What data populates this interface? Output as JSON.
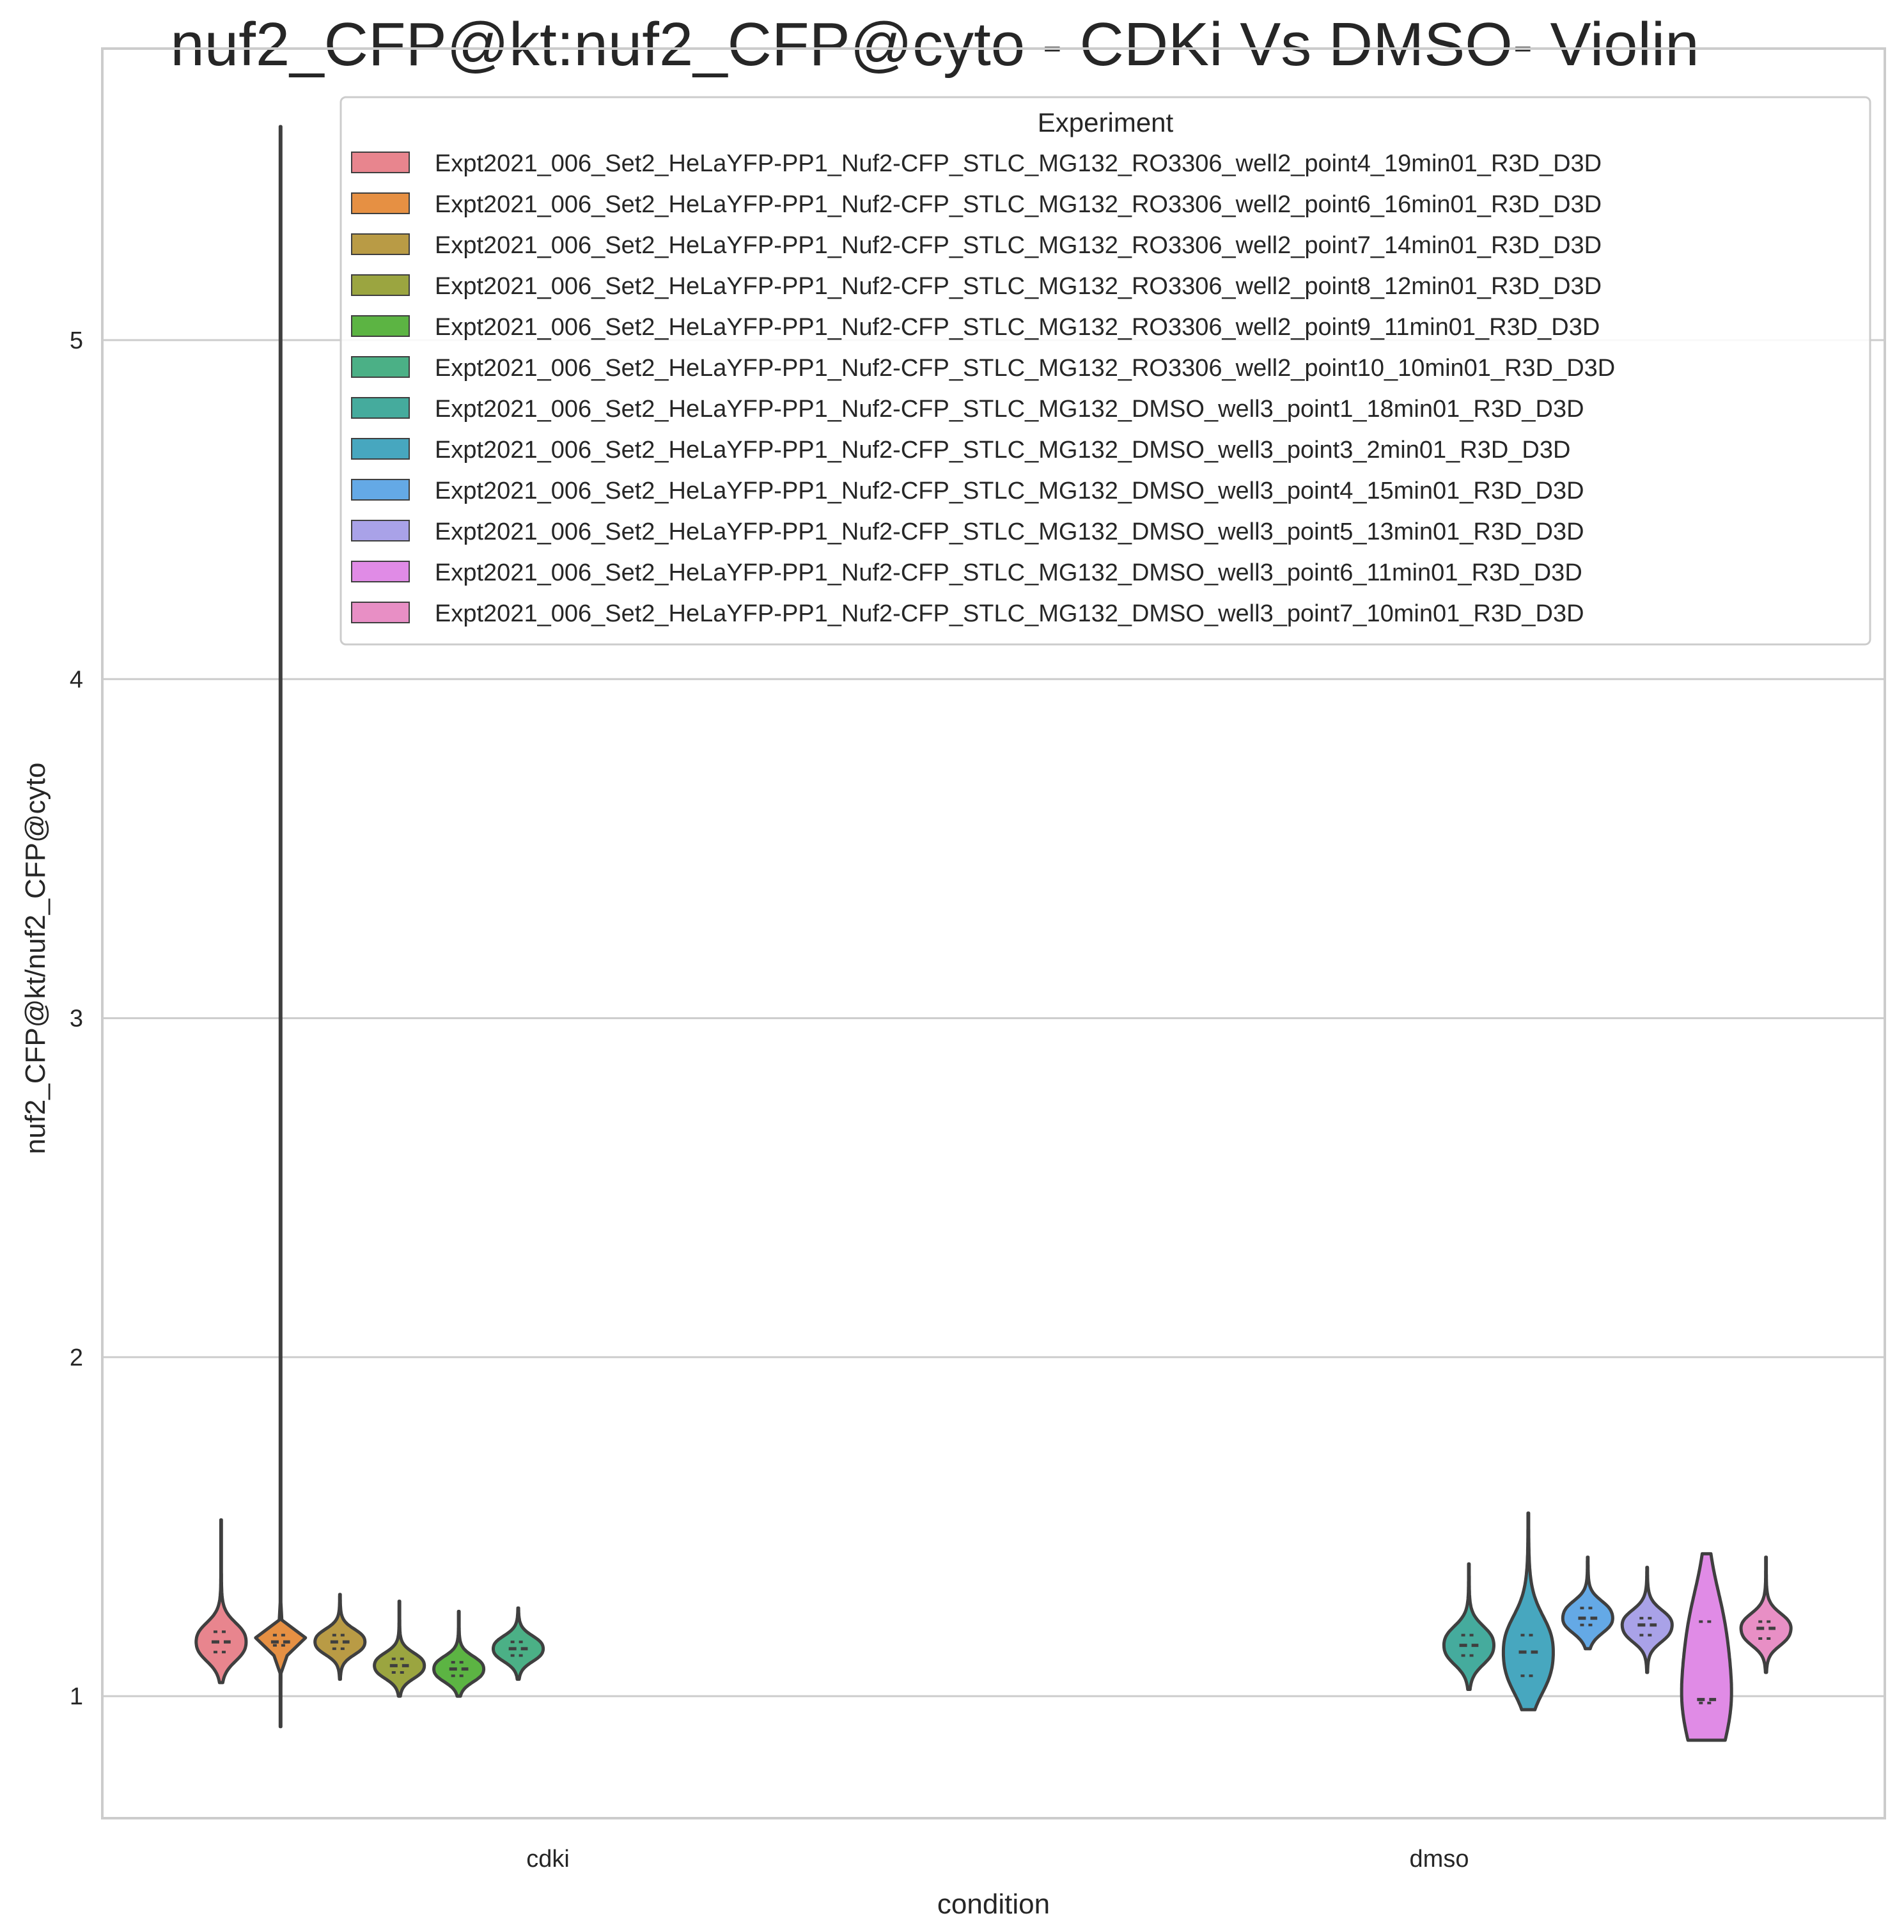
{
  "chart_data": {
    "type": "violin",
    "title": "nuf2_CFP@kt:nuf2_CFP@cyto - CDKi Vs DMSO- Violin",
    "xlabel": "condition",
    "ylabel": "nuf2_CFP@kt/nuf2_CFP@cyto",
    "ylim": [
      0.64,
      5.86
    ],
    "yticks": [
      "1",
      "2",
      "3",
      "4",
      "5"
    ],
    "grid": true,
    "legend": {
      "title": "Experiment",
      "placement": "top-right"
    },
    "categories": [
      "cdki",
      "dmso"
    ],
    "series": [
      {
        "name": "Expt2021_006_Set2_HeLaYFP-PP1_Nuf2-CFP_STLC_MG132_RO3306_well2_point4_19min01_R3D_D3D",
        "color": "#e8858e",
        "category": "cdki",
        "min": 1.04,
        "max": 1.52,
        "q1": 1.13,
        "median": 1.16,
        "q3": 1.19
      },
      {
        "name": "Expt2021_006_Set2_HeLaYFP-PP1_Nuf2-CFP_STLC_MG132_RO3306_well2_point6_16min01_R3D_D3D",
        "color": "#e69043",
        "category": "cdki",
        "min": 0.91,
        "max": 5.63,
        "q1": 1.15,
        "median": 1.16,
        "q3": 1.18
      },
      {
        "name": "Expt2021_006_Set2_HeLaYFP-PP1_Nuf2-CFP_STLC_MG132_RO3306_well2_point7_14min01_R3D_D3D",
        "color": "#b99b45",
        "category": "cdki",
        "min": 1.05,
        "max": 1.3,
        "q1": 1.14,
        "median": 1.16,
        "q3": 1.18
      },
      {
        "name": "Expt2021_006_Set2_HeLaYFP-PP1_Nuf2-CFP_STLC_MG132_RO3306_well2_point8_12min01_R3D_D3D",
        "color": "#9ba540",
        "category": "cdki",
        "min": 1.0,
        "max": 1.28,
        "q1": 1.07,
        "median": 1.09,
        "q3": 1.11
      },
      {
        "name": "Expt2021_006_Set2_HeLaYFP-PP1_Nuf2-CFP_STLC_MG132_RO3306_well2_point9_11min01_R3D_D3D",
        "color": "#5cb443",
        "category": "cdki",
        "min": 1.0,
        "max": 1.25,
        "q1": 1.06,
        "median": 1.08,
        "q3": 1.1
      },
      {
        "name": "Expt2021_006_Set2_HeLaYFP-PP1_Nuf2-CFP_STLC_MG132_RO3306_well2_point10_10min01_R3D_D3D",
        "color": "#4bb086",
        "category": "cdki",
        "min": 1.05,
        "max": 1.26,
        "q1": 1.12,
        "median": 1.14,
        "q3": 1.16
      },
      {
        "name": "Expt2021_006_Set2_HeLaYFP-PP1_Nuf2-CFP_STLC_MG132_DMSO_well3_point1_18min01_R3D_D3D",
        "color": "#45ab9d",
        "category": "dmso",
        "min": 1.02,
        "max": 1.39,
        "q1": 1.12,
        "median": 1.15,
        "q3": 1.18
      },
      {
        "name": "Expt2021_006_Set2_HeLaYFP-PP1_Nuf2-CFP_STLC_MG132_DMSO_well3_point3_2min01_R3D_D3D",
        "color": "#47a7bf",
        "category": "dmso",
        "min": 0.96,
        "max": 1.54,
        "q1": 1.06,
        "median": 1.13,
        "q3": 1.18
      },
      {
        "name": "Expt2021_006_Set2_HeLaYFP-PP1_Nuf2-CFP_STLC_MG132_DMSO_well3_point4_15min01_R3D_D3D",
        "color": "#64a9e6",
        "category": "dmso",
        "min": 1.14,
        "max": 1.41,
        "q1": 1.21,
        "median": 1.23,
        "q3": 1.26
      },
      {
        "name": "Expt2021_006_Set2_HeLaYFP-PP1_Nuf2-CFP_STLC_MG132_DMSO_well3_point5_13min01_R3D_D3D",
        "color": "#a9a2e8",
        "category": "dmso",
        "min": 1.07,
        "max": 1.38,
        "q1": 1.18,
        "median": 1.21,
        "q3": 1.23
      },
      {
        "name": "Expt2021_006_Set2_HeLaYFP-PP1_Nuf2-CFP_STLC_MG132_DMSO_well3_point6_11min01_R3D_D3D",
        "color": "#e08be6",
        "category": "dmso",
        "min": 0.87,
        "max": 1.42,
        "q1": 0.98,
        "median": 0.99,
        "q3": 1.22
      },
      {
        "name": "Expt2021_006_Set2_HeLaYFP-PP1_Nuf2-CFP_STLC_MG132_DMSO_well3_point7_10min01_R3D_D3D",
        "color": "#e88fc5",
        "category": "dmso",
        "min": 1.07,
        "max": 1.41,
        "q1": 1.17,
        "median": 1.2,
        "q3": 1.22
      }
    ]
  }
}
